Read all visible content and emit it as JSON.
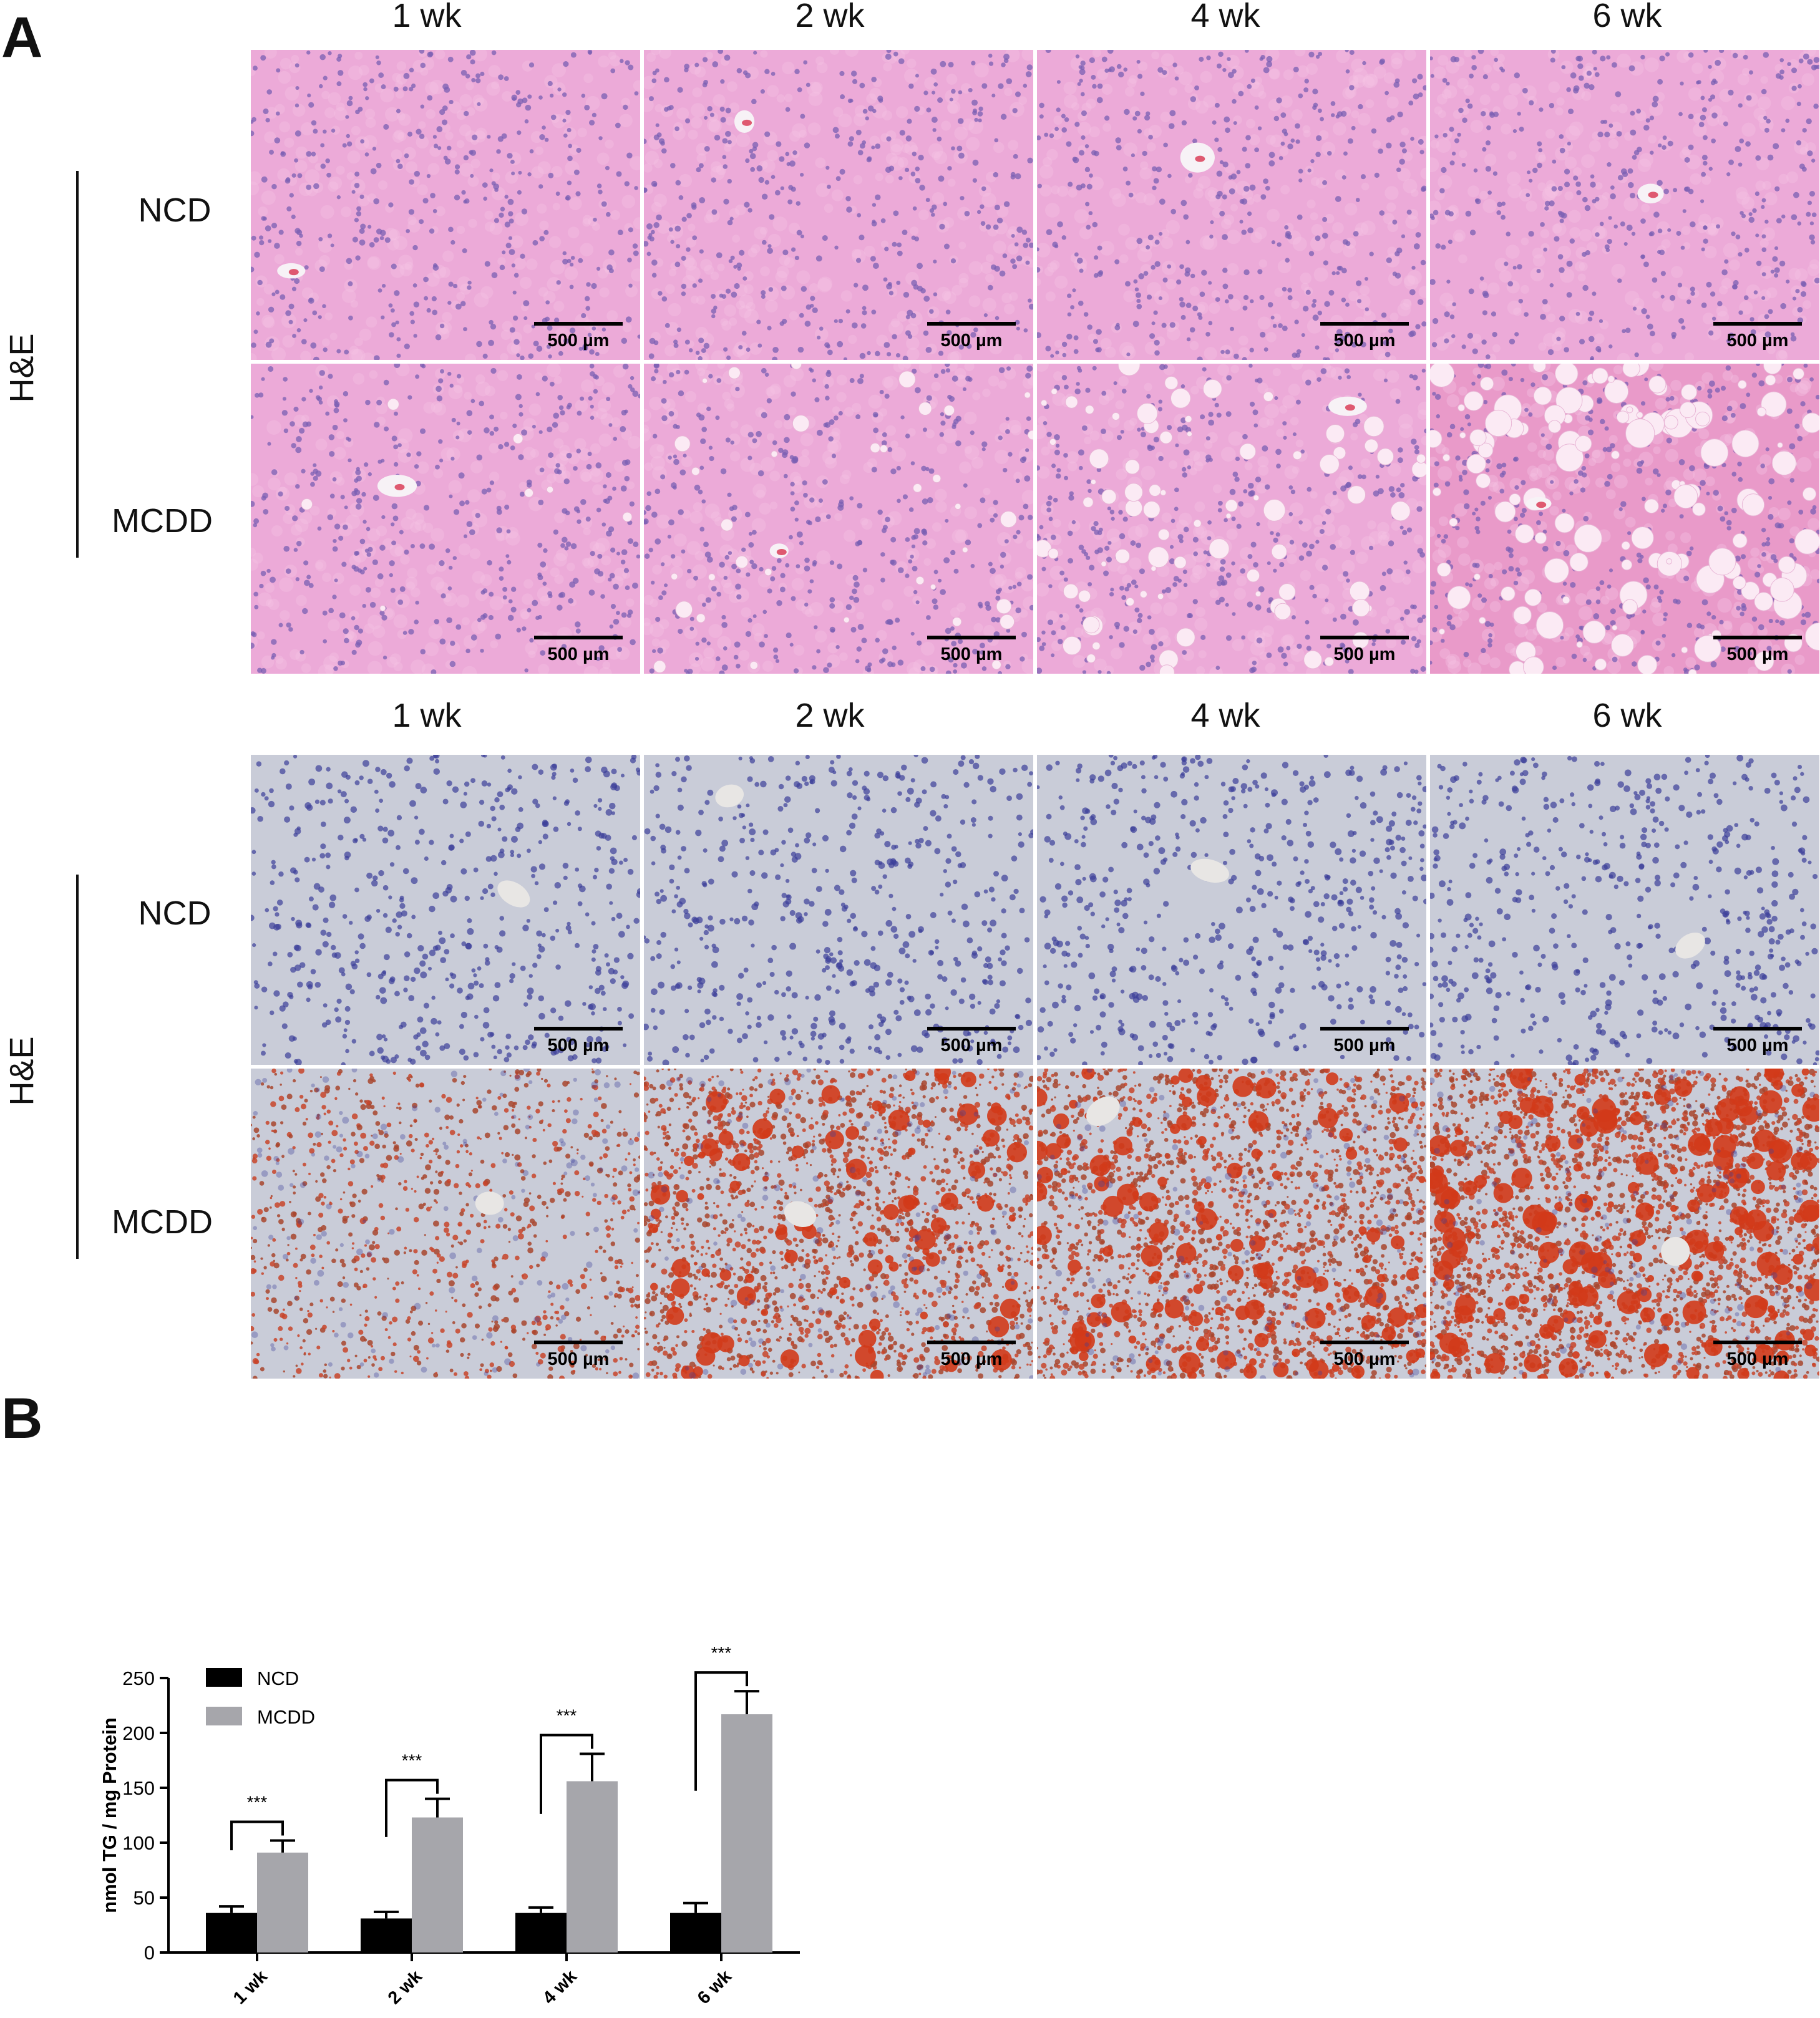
{
  "panel_a": {
    "letter": "A",
    "top_section": {
      "stain_label": "H&E",
      "columns": [
        "1 wk",
        "2 wk",
        "4 wk",
        "6 wk"
      ],
      "rows": [
        "NCD",
        "MCDD"
      ]
    },
    "bottom_section": {
      "stain_label": "H&E",
      "columns": [
        "1 wk",
        "2 wk",
        "4 wk",
        "6 wk"
      ],
      "rows": [
        "NCD",
        "MCDD"
      ]
    },
    "scale_bar_label": "500 µm",
    "colors": {
      "he_background": "#ecaad8",
      "he_nucleus": "#7a5fb3",
      "oro_background": "#c9ccd8",
      "oro_nucleus": "#3c3f9a",
      "oro_lipid": "#d23a1a"
    }
  },
  "panel_b": {
    "letter": "B"
  },
  "chart_data": {
    "type": "bar",
    "categories": [
      "1 wk",
      "2 wk",
      "4 wk",
      "6 wk"
    ],
    "series": [
      {
        "name": "NCD",
        "color": "#000000",
        "values": [
          36,
          31,
          36,
          36
        ],
        "errors": [
          6,
          6,
          5,
          9
        ]
      },
      {
        "name": "MCDD",
        "color": "#a6a6ab",
        "values": [
          91,
          123,
          156,
          217
        ],
        "errors": [
          11,
          17,
          25,
          21
        ]
      }
    ],
    "significance": [
      "***",
      "***",
      "***",
      "***"
    ],
    "ylabel": "nmol TG / mg Protein",
    "xlabel": "",
    "ylim": [
      0,
      250
    ],
    "yticks": [
      0,
      50,
      100,
      150,
      200,
      250
    ],
    "legend_position": "top-left"
  }
}
